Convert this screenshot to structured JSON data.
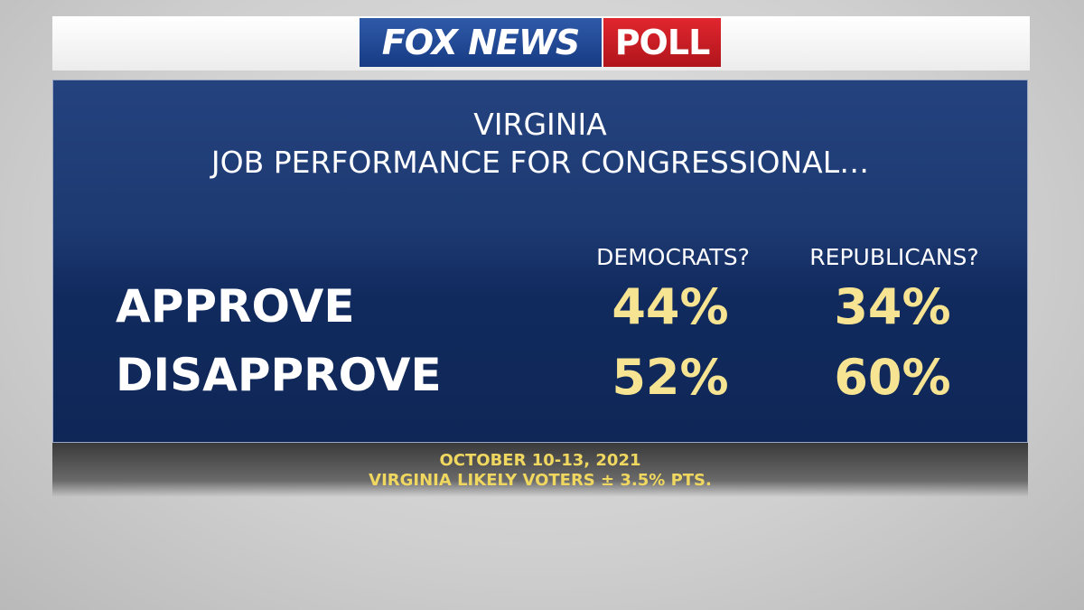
{
  "logo": {
    "brand": "FOX NEWS",
    "product": "POLL"
  },
  "header": {
    "title_lines": [
      "VIRGINIA",
      "JOB PERFORMANCE FOR CONGRESSIONAL…"
    ]
  },
  "table": {
    "columns": [
      "DEMOCRATS?",
      "REPUBLICANS?"
    ],
    "rows": [
      [
        "APPROVE",
        "44%",
        "34%"
      ],
      [
        "DISAPPROVE",
        "52%",
        "60%"
      ]
    ]
  },
  "footer": {
    "lines": [
      "OCTOBER 10-13, 2021",
      "VIRGINIA LIKELY VOTERS ± 3.5% PTS."
    ]
  }
}
